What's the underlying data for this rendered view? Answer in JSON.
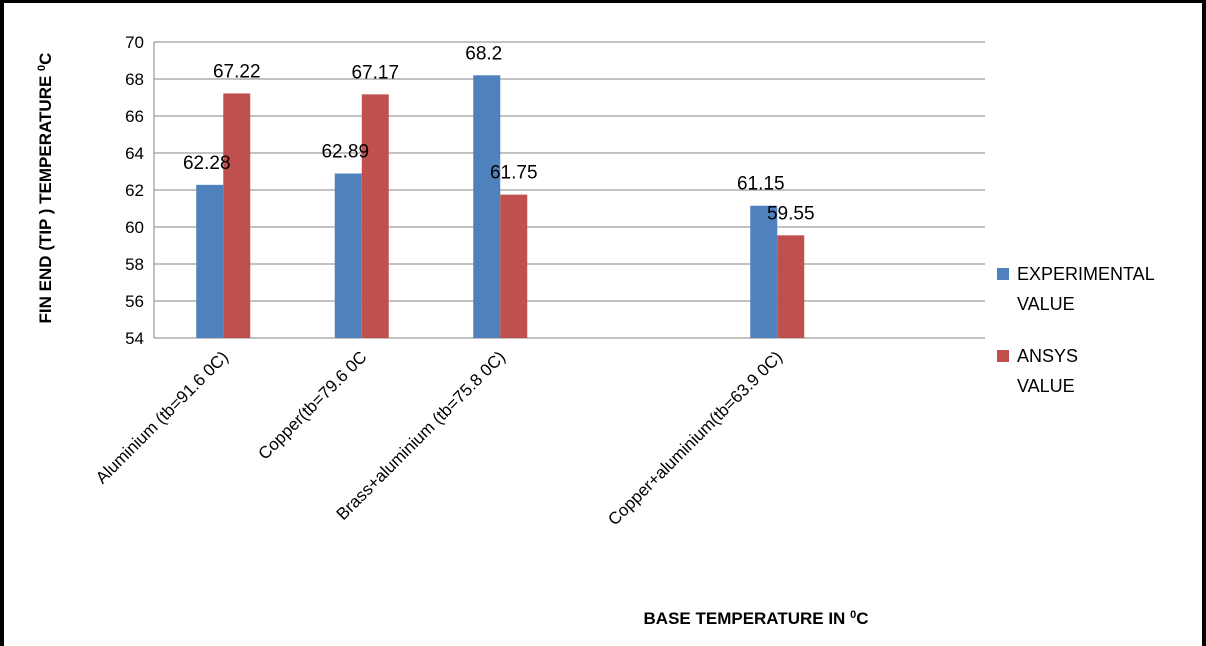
{
  "chart_data": {
    "type": "bar",
    "categories": [
      "Aluminium (tb=91.6 0C)",
      "Copper(tb=79.6 0C",
      "Brass+aluminium (tb=75.8 0C)",
      "",
      "Copper+aluminium(tb=63.9 0C)",
      ""
    ],
    "series": [
      {
        "name": "EXPERIMENTAL VALUE",
        "legend_lines": [
          "EXPERIMENTAL",
          "VALUE"
        ],
        "color": "#4F81BD",
        "values": [
          62.28,
          62.89,
          68.2,
          null,
          61.15,
          null
        ],
        "labels": [
          "62.28",
          "62.89",
          "68.2",
          null,
          "61.15",
          null
        ]
      },
      {
        "name": "ANSYS VALUE",
        "legend_lines": [
          "ANSYS",
          "VALUE"
        ],
        "color": "#C0504D",
        "values": [
          67.22,
          67.17,
          61.75,
          null,
          59.55,
          null
        ],
        "labels": [
          "67.22",
          "67.17",
          "61.75",
          null,
          "59.55",
          null
        ]
      }
    ],
    "ylim": [
      54,
      70
    ],
    "yticks": [
      "54",
      "56",
      "58",
      "60",
      "62",
      "64",
      "66",
      "68",
      "70"
    ],
    "ylabel": "FIN END (TIP ) TEMPERATURE ",
    "ylabel_sup": "0",
    "ylabel_unit": "C",
    "xlabel": "BASE TEMPERATURE IN ",
    "xlabel_sup": "0",
    "xlabel_unit": "C",
    "grid": true,
    "legend_position": "right",
    "colors": {
      "gridline": "#868686",
      "axis": "#868686"
    }
  }
}
